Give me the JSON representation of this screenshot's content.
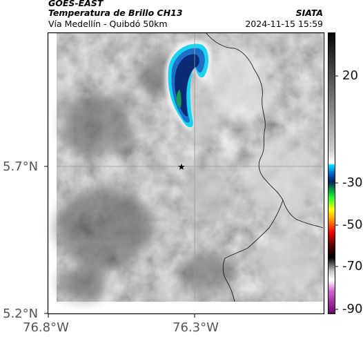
{
  "header": {
    "satellite": "GOES-EAST",
    "product": "Temperatura de Brillo CH13",
    "organization": "SIATA",
    "location": "Vía Medellín - Quibdó 50km",
    "timestamp": "2024-11-15 15:59"
  },
  "map": {
    "lat_ticks": [
      {
        "value": 5.7,
        "label": "5.7°N"
      },
      {
        "value": 5.2,
        "label": "5.2°N"
      }
    ],
    "lon_ticks": [
      {
        "value": -76.8,
        "label": "76.8°W"
      },
      {
        "value": -76.3,
        "label": "76.3°W"
      }
    ],
    "marker_icon": "star-icon",
    "colors": {
      "frame": "#000000",
      "gridline": "#9a9a9a",
      "border_line": "#1a1a1a"
    }
  },
  "colorbar": {
    "labels": [
      "20",
      "-30",
      "-50",
      "-70",
      "-90"
    ]
  }
}
